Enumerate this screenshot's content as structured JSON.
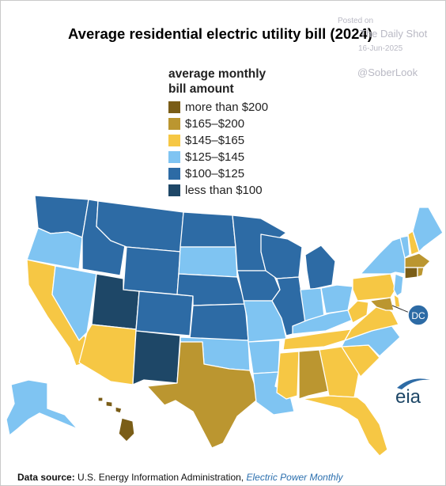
{
  "title": "Average residential electric utility bill (2024)",
  "watermark": {
    "posted_on": "Posted on",
    "source_name": "The Daily Shot",
    "date": "16-Jun-2025",
    "handle": "@SoberLook"
  },
  "legend": {
    "title_line1": "average monthly",
    "title_line2": "bill amount",
    "items": [
      {
        "label": "more than $200",
        "color": "#7a5d17"
      },
      {
        "label": "$165–$200",
        "color": "#bb9630"
      },
      {
        "label": "$145–$165",
        "color": "#f6c744"
      },
      {
        "label": "$125–$145",
        "color": "#7fc4f2"
      },
      {
        "label": "$100–$125",
        "color": "#2d6ba5"
      },
      {
        "label": "less than $100",
        "color": "#1e4767"
      }
    ]
  },
  "dc_label": "DC",
  "logo": "eia",
  "source": {
    "prefix": "Data source:",
    "org": "U.S. Energy Information Administration,",
    "publication": "Electric Power Monthly"
  },
  "states": {
    "WA": "$100–$125",
    "OR": "$125–$145",
    "CA": "$145–$165",
    "NV": "$125–$145",
    "ID": "$100–$125",
    "MT": "$100–$125",
    "WY": "$100–$125",
    "UT": "less than $100",
    "AZ": "$145–$165",
    "CO": "$100–$125",
    "NM": "less than $100",
    "ND": "$100–$125",
    "SD": "$125–$145",
    "NE": "$100–$125",
    "KS": "$100–$125",
    "OK": "$125–$145",
    "TX": "$165–$200",
    "MN": "$100–$125",
    "IA": "$100–$125",
    "MO": "$125–$145",
    "AR": "$125–$145",
    "LA": "$125–$145",
    "WI": "$100–$125",
    "IL": "$100–$125",
    "MI": "$100–$125",
    "IN": "$125–$145",
    "OH": "$125–$145",
    "KY": "$125–$145",
    "TN": "$145–$165",
    "MS": "$145–$165",
    "AL": "$165–$200",
    "GA": "$145–$165",
    "FL": "$145–$165",
    "SC": "$145–$165",
    "NC": "$125–$145",
    "VA": "$145–$165",
    "WV": "$145–$165",
    "PA": "$145–$165",
    "NY": "$125–$145",
    "VT": "$125–$145",
    "NH": "$145–$165",
    "ME": "$125–$145",
    "MA": "$165–$200",
    "RI": "$165–$200",
    "CT": "more than $200",
    "NJ": "$125–$145",
    "DE": "$145–$165",
    "MD": "$165–$200",
    "DC": "$100–$125",
    "AK": "$125–$145",
    "HI": "more than $200"
  }
}
